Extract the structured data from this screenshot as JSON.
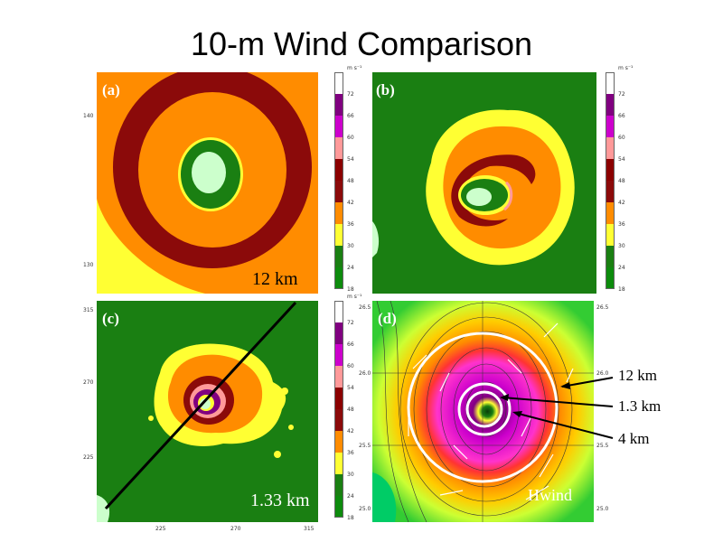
{
  "title": "10-m Wind Comparison",
  "colors": {
    "c18": "#1a7f12",
    "c24": "#0d8b0d",
    "c30": "#ffff33",
    "c36": "#ff8c00",
    "c42": "#8b0a0a",
    "c48": "#8b0000",
    "c54": "#ff9999",
    "c60": "#cc00cc",
    "c66": "#800080",
    "c72": "#ffffff"
  },
  "colorbar": {
    "unit": "m s⁻¹",
    "labels": [
      "72",
      "66",
      "60",
      "54",
      "48",
      "42",
      "36",
      "30",
      "24",
      "18"
    ]
  },
  "panels": {
    "a": {
      "label": "(a)",
      "resolution": "12 km",
      "yticks": [
        "140",
        "130"
      ]
    },
    "b": {
      "label": "(b)"
    },
    "c": {
      "label": "(c)",
      "resolution": "1.33 km",
      "yticks": [
        "315",
        "270",
        "225"
      ],
      "xticks": [
        "225",
        "270",
        "315"
      ]
    },
    "d": {
      "label": "(d)",
      "source": "Hwind",
      "lat_ticks": [
        "26.5",
        "26.0",
        "25.5",
        "25.0"
      ]
    }
  },
  "annotations": {
    "a1": "12 km",
    "a2": "1.3 km",
    "a3": "4 km"
  }
}
